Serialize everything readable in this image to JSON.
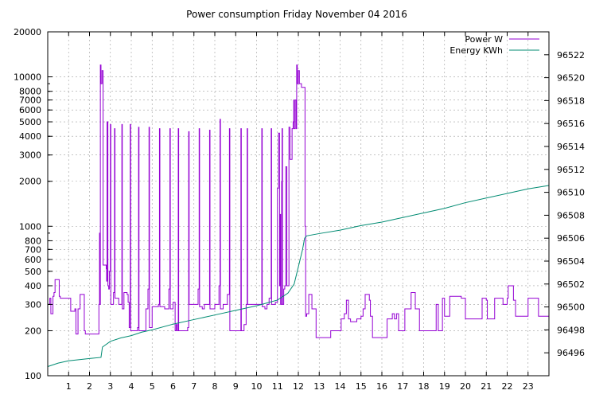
{
  "chart_data": {
    "type": "line",
    "title": "Power consumption Friday November 04 2016",
    "xlabel": "",
    "ylabel": "",
    "xlim": [
      0,
      24
    ],
    "x_ticks": [
      "1",
      "2",
      "3",
      "4",
      "5",
      "6",
      "7",
      "8",
      "9",
      "10",
      "11",
      "12",
      "13",
      "14",
      "15",
      "16",
      "17",
      "18",
      "19",
      "20",
      "21",
      "22",
      "23"
    ],
    "y_left": {
      "scale": "log",
      "lim": [
        100,
        20000
      ],
      "tick_labels": [
        "100",
        "200",
        "300",
        "400",
        "500",
        "600",
        "700",
        "800",
        "1000",
        "2000",
        "3000",
        "4000",
        "5000",
        "6000",
        "7000",
        "8000",
        "10000",
        "20000"
      ]
    },
    "y_right": {
      "scale": "linear",
      "lim": [
        96494,
        96524
      ],
      "tick_labels": [
        "96496",
        "96498",
        "96500",
        "96502",
        "96504",
        "96506",
        "96508",
        "96510",
        "96512",
        "96514",
        "96516",
        "96518",
        "96520",
        "96522"
      ]
    },
    "grid": true,
    "legend_position": "top-right",
    "series": [
      {
        "name": "Power W",
        "axis": "left",
        "color": "#9400d3",
        "points": [
          [
            0.0,
            300
          ],
          [
            0.1,
            330
          ],
          [
            0.15,
            260
          ],
          [
            0.25,
            340
          ],
          [
            0.3,
            360
          ],
          [
            0.35,
            440
          ],
          [
            0.55,
            340
          ],
          [
            0.6,
            330
          ],
          [
            1.05,
            330
          ],
          [
            1.1,
            270
          ],
          [
            1.3,
            280
          ],
          [
            1.35,
            190
          ],
          [
            1.45,
            280
          ],
          [
            1.55,
            350
          ],
          [
            1.75,
            200
          ],
          [
            1.8,
            190
          ],
          [
            2.4,
            190
          ],
          [
            2.45,
            300
          ],
          [
            2.48,
            900
          ],
          [
            2.5,
            300
          ],
          [
            2.52,
            12000
          ],
          [
            2.55,
            9000
          ],
          [
            2.6,
            11000
          ],
          [
            2.65,
            550
          ],
          [
            2.8,
            520
          ],
          [
            2.82,
            430
          ],
          [
            2.84,
            5000
          ],
          [
            2.88,
            400
          ],
          [
            2.92,
            380
          ],
          [
            2.95,
            500
          ],
          [
            3.0,
            4800
          ],
          [
            3.02,
            300
          ],
          [
            3.15,
            360
          ],
          [
            3.2,
            4500
          ],
          [
            3.22,
            330
          ],
          [
            3.4,
            300
          ],
          [
            3.5,
            300
          ],
          [
            3.55,
            4800
          ],
          [
            3.57,
            280
          ],
          [
            3.65,
            360
          ],
          [
            3.8,
            350
          ],
          [
            3.85,
            310
          ],
          [
            3.9,
            210
          ],
          [
            3.95,
            4800
          ],
          [
            3.97,
            200
          ],
          [
            4.2,
            200
          ],
          [
            4.3,
            210
          ],
          [
            4.35,
            4600
          ],
          [
            4.37,
            200
          ],
          [
            4.5,
            200
          ],
          [
            4.6,
            200
          ],
          [
            4.7,
            280
          ],
          [
            4.8,
            380
          ],
          [
            4.85,
            4600
          ],
          [
            4.87,
            210
          ],
          [
            5.0,
            290
          ],
          [
            5.2,
            290
          ],
          [
            5.3,
            300
          ],
          [
            5.35,
            4500
          ],
          [
            5.37,
            290
          ],
          [
            5.5,
            290
          ],
          [
            5.6,
            280
          ],
          [
            5.7,
            280
          ],
          [
            5.8,
            380
          ],
          [
            5.85,
            4500
          ],
          [
            5.87,
            280
          ],
          [
            6.0,
            310
          ],
          [
            6.1,
            200
          ],
          [
            6.15,
            220
          ],
          [
            6.2,
            200
          ],
          [
            6.25,
            4500
          ],
          [
            6.27,
            200
          ],
          [
            6.5,
            200
          ],
          [
            6.6,
            200
          ],
          [
            6.7,
            210
          ],
          [
            6.75,
            4300
          ],
          [
            6.77,
            300
          ],
          [
            6.9,
            300
          ],
          [
            7.0,
            300
          ],
          [
            7.2,
            380
          ],
          [
            7.25,
            4500
          ],
          [
            7.27,
            290
          ],
          [
            7.4,
            280
          ],
          [
            7.5,
            300
          ],
          [
            7.7,
            300
          ],
          [
            7.75,
            4400
          ],
          [
            7.77,
            280
          ],
          [
            7.9,
            280
          ],
          [
            8.0,
            300
          ],
          [
            8.2,
            400
          ],
          [
            8.25,
            5200
          ],
          [
            8.27,
            280
          ],
          [
            8.4,
            300
          ],
          [
            8.6,
            350
          ],
          [
            8.7,
            4500
          ],
          [
            8.72,
            200
          ],
          [
            8.9,
            200
          ],
          [
            9.0,
            200
          ],
          [
            9.2,
            200
          ],
          [
            9.25,
            4500
          ],
          [
            9.27,
            200
          ],
          [
            9.4,
            220
          ],
          [
            9.5,
            300
          ],
          [
            9.55,
            4500
          ],
          [
            9.57,
            300
          ],
          [
            9.7,
            300
          ],
          [
            10.0,
            300
          ],
          [
            10.2,
            300
          ],
          [
            10.25,
            4500
          ],
          [
            10.27,
            290
          ],
          [
            10.4,
            280
          ],
          [
            10.5,
            300
          ],
          [
            10.6,
            330
          ],
          [
            10.7,
            4500
          ],
          [
            10.72,
            300
          ],
          [
            10.8,
            300
          ],
          [
            10.9,
            310
          ],
          [
            11.0,
            1800
          ],
          [
            11.05,
            4200
          ],
          [
            11.1,
            400
          ],
          [
            11.12,
            1200
          ],
          [
            11.15,
            300
          ],
          [
            11.2,
            2000
          ],
          [
            11.22,
            4500
          ],
          [
            11.24,
            300
          ],
          [
            11.3,
            380
          ],
          [
            11.35,
            400
          ],
          [
            11.4,
            2500
          ],
          [
            11.45,
            400
          ],
          [
            11.55,
            4600
          ],
          [
            11.6,
            2800
          ],
          [
            11.7,
            4500
          ],
          [
            11.75,
            5000
          ],
          [
            11.78,
            7000
          ],
          [
            11.8,
            4500
          ],
          [
            11.85,
            7000
          ],
          [
            11.9,
            4500
          ],
          [
            11.92,
            12000
          ],
          [
            11.95,
            9000
          ],
          [
            12.0,
            11000
          ],
          [
            12.05,
            9000
          ],
          [
            12.15,
            8500
          ],
          [
            12.3,
            8500
          ],
          [
            12.32,
            1000
          ],
          [
            12.35,
            250
          ],
          [
            12.4,
            260
          ],
          [
            12.5,
            350
          ],
          [
            12.6,
            350
          ],
          [
            12.65,
            280
          ],
          [
            12.8,
            280
          ],
          [
            12.85,
            180
          ],
          [
            13.0,
            180
          ],
          [
            13.2,
            180
          ],
          [
            13.5,
            180
          ],
          [
            13.55,
            200
          ],
          [
            14.0,
            200
          ],
          [
            14.05,
            240
          ],
          [
            14.2,
            260
          ],
          [
            14.3,
            320
          ],
          [
            14.4,
            240
          ],
          [
            14.5,
            230
          ],
          [
            14.8,
            240
          ],
          [
            15.0,
            250
          ],
          [
            15.1,
            280
          ],
          [
            15.2,
            350
          ],
          [
            15.3,
            350
          ],
          [
            15.4,
            320
          ],
          [
            15.45,
            250
          ],
          [
            15.55,
            180
          ],
          [
            16.0,
            180
          ],
          [
            16.1,
            180
          ],
          [
            16.2,
            180
          ],
          [
            16.25,
            240
          ],
          [
            16.4,
            240
          ],
          [
            16.5,
            260
          ],
          [
            16.6,
            240
          ],
          [
            16.7,
            260
          ],
          [
            16.8,
            200
          ],
          [
            17.0,
            200
          ],
          [
            17.1,
            280
          ],
          [
            17.3,
            280
          ],
          [
            17.4,
            360
          ],
          [
            17.6,
            280
          ],
          [
            17.7,
            280
          ],
          [
            17.8,
            200
          ],
          [
            18.0,
            200
          ],
          [
            18.4,
            200
          ],
          [
            18.6,
            300
          ],
          [
            18.7,
            200
          ],
          [
            18.9,
            330
          ],
          [
            19.0,
            250
          ],
          [
            19.2,
            250
          ],
          [
            19.25,
            340
          ],
          [
            19.5,
            340
          ],
          [
            19.8,
            330
          ],
          [
            20.0,
            240
          ],
          [
            20.2,
            240
          ],
          [
            20.4,
            240
          ],
          [
            20.6,
            240
          ],
          [
            20.8,
            330
          ],
          [
            21.0,
            320
          ],
          [
            21.05,
            240
          ],
          [
            21.2,
            240
          ],
          [
            21.4,
            330
          ],
          [
            21.6,
            330
          ],
          [
            21.8,
            300
          ],
          [
            22.0,
            330
          ],
          [
            22.05,
            400
          ],
          [
            22.2,
            400
          ],
          [
            22.3,
            320
          ],
          [
            22.4,
            250
          ],
          [
            22.8,
            250
          ],
          [
            22.95,
            250
          ],
          [
            23.0,
            330
          ],
          [
            23.4,
            330
          ],
          [
            23.5,
            250
          ],
          [
            24.0,
            250
          ]
        ]
      },
      {
        "name": "Energy KWh",
        "axis": "right",
        "color": "#008b72",
        "points": [
          [
            0.0,
            96494.8
          ],
          [
            0.5,
            96495.1
          ],
          [
            1.0,
            96495.3
          ],
          [
            2.0,
            96495.5
          ],
          [
            2.55,
            96495.6
          ],
          [
            2.62,
            96496.5
          ],
          [
            3.0,
            96497.0
          ],
          [
            3.5,
            96497.3
          ],
          [
            4.0,
            96497.5
          ],
          [
            4.5,
            96497.8
          ],
          [
            5.0,
            96498.0
          ],
          [
            6.0,
            96498.5
          ],
          [
            7.0,
            96498.9
          ],
          [
            8.0,
            96499.3
          ],
          [
            9.0,
            96499.7
          ],
          [
            10.0,
            96500.1
          ],
          [
            11.0,
            96500.6
          ],
          [
            11.5,
            96501.2
          ],
          [
            11.8,
            96502.0
          ],
          [
            12.0,
            96503.5
          ],
          [
            12.2,
            96505.0
          ],
          [
            12.3,
            96506.0
          ],
          [
            12.4,
            96506.2
          ],
          [
            13.0,
            96506.4
          ],
          [
            14.0,
            96506.7
          ],
          [
            15.0,
            96507.1
          ],
          [
            16.0,
            96507.4
          ],
          [
            17.0,
            96507.8
          ],
          [
            18.0,
            96508.2
          ],
          [
            19.0,
            96508.6
          ],
          [
            20.0,
            96509.1
          ],
          [
            21.0,
            96509.5
          ],
          [
            22.0,
            96509.9
          ],
          [
            23.0,
            96510.3
          ],
          [
            24.0,
            96510.6
          ]
        ]
      }
    ]
  }
}
